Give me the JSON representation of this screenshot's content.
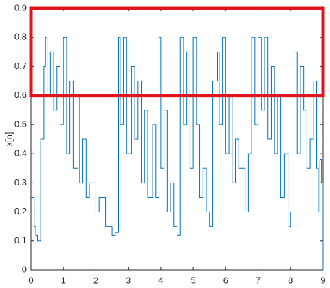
{
  "chart_data": {
    "type": "line",
    "ylabel": "x[n]",
    "xlim": [
      0,
      9
    ],
    "ylim": [
      0,
      0.9
    ],
    "xticks": [
      0,
      1,
      2,
      3,
      4,
      5,
      6,
      7,
      8,
      9
    ],
    "yticks": [
      0,
      0.1,
      0.2,
      0.3,
      0.4,
      0.5,
      0.6,
      0.7,
      0.8,
      0.9
    ],
    "series": [
      {
        "color": "#0072bd",
        "x": [
          0,
          0.1,
          0.15,
          0.2,
          0.3,
          0.4,
          0.45,
          0.5,
          0.6,
          0.7,
          0.8,
          0.9,
          1.0,
          1.1,
          1.2,
          1.3,
          1.45,
          1.5,
          1.6,
          1.7,
          1.8,
          2.0,
          2.1,
          2.3,
          2.5,
          2.6,
          2.7,
          2.75,
          2.85,
          2.95,
          3.1,
          3.2,
          3.3,
          3.4,
          3.5,
          3.6,
          3.75,
          3.85,
          3.95,
          4.0,
          4.1,
          4.2,
          4.3,
          4.4,
          4.5,
          4.6,
          4.7,
          4.8,
          4.9,
          5.0,
          5.1,
          5.2,
          5.3,
          5.4,
          5.5,
          5.6,
          5.75,
          5.8,
          5.9,
          6.0,
          6.1,
          6.2,
          6.3,
          6.4,
          6.6,
          6.7,
          6.8,
          6.9,
          7.0,
          7.1,
          7.2,
          7.3,
          7.4,
          7.5,
          7.6,
          7.7,
          7.8,
          7.95,
          8.0,
          8.1,
          8.2,
          8.3,
          8.4,
          8.5,
          8.6,
          8.7,
          8.8,
          8.85,
          8.9,
          8.95,
          9.0
        ],
        "values": [
          0.25,
          0.15,
          0.12,
          0.1,
          0.45,
          0.7,
          0.8,
          0.6,
          0.75,
          0.55,
          0.7,
          0.5,
          0.8,
          0.4,
          0.65,
          0.35,
          0.6,
          0.3,
          0.45,
          0.25,
          0.3,
          0.2,
          0.25,
          0.15,
          0.12,
          0.13,
          0.8,
          0.5,
          0.8,
          0.4,
          0.7,
          0.45,
          0.65,
          0.3,
          0.55,
          0.25,
          0.5,
          0.25,
          0.8,
          0.35,
          0.55,
          0.2,
          0.3,
          0.15,
          0.12,
          0.8,
          0.5,
          0.75,
          0.35,
          0.8,
          0.5,
          0.25,
          0.35,
          0.2,
          0.15,
          0.65,
          0.75,
          0.5,
          0.8,
          0.4,
          0.6,
          0.3,
          0.45,
          0.35,
          0.2,
          0.4,
          0.8,
          0.5,
          0.8,
          0.55,
          0.8,
          0.45,
          0.7,
          0.4,
          0.6,
          0.25,
          0.4,
          0.15,
          0.2,
          0.75,
          0.4,
          0.7,
          0.55,
          0.35,
          0.45,
          0.65,
          0.35,
          0.2,
          0.38,
          0.3,
          0
        ]
      }
    ],
    "highlight": {
      "xlim": [
        0,
        9
      ],
      "ylim": [
        0.6,
        0.9
      ],
      "color": "#e0141e"
    }
  }
}
